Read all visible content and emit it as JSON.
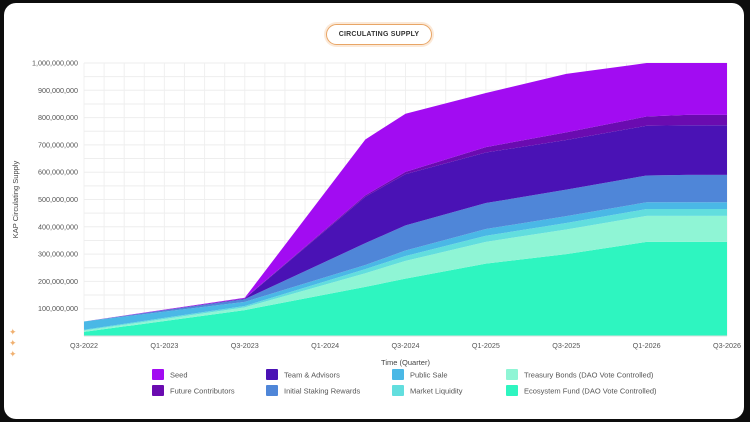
{
  "chart_data": {
    "type": "area",
    "stacked": true,
    "title": "CIRCULATING SUPPLY",
    "xlabel": "Time (Quarter)",
    "ylabel": "KAP Circulating Supply",
    "ylim": [
      0,
      1000000000
    ],
    "yticks": [
      "100,000,000",
      "200,000,000",
      "300,000,000",
      "400,000,000",
      "500,000,000",
      "600,000,000",
      "700,000,000",
      "800,000,000",
      "900,000,000",
      "1,000,000,000"
    ],
    "xticks": [
      "Q3-2022",
      "Q1-2023",
      "Q3-2023",
      "Q1-2024",
      "Q3-2024",
      "Q1-2025",
      "Q3-2025",
      "Q1-2026",
      "Q3-2026"
    ],
    "grid": true,
    "x": [
      "Q3-2022",
      "Q3-2023",
      "Q2-2024",
      "Q3-2024",
      "Q1-2025",
      "Q3-2025",
      "Q1-2026",
      "Q2-2026",
      "Q3-2026"
    ],
    "series": [
      {
        "name": "Ecosystem Fund (DAO Vote Controlled)",
        "color": "#2ef5c0",
        "values": [
          15000000,
          95000000,
          180000000,
          210000000,
          265000000,
          300000000,
          345000000,
          345000000,
          345000000
        ]
      },
      {
        "name": "Treasury Bonds (DAO Vote Controlled)",
        "color": "#8ff5d5",
        "values": [
          5000000,
          10000000,
          50000000,
          65000000,
          80000000,
          90000000,
          95000000,
          95000000,
          95000000
        ]
      },
      {
        "name": "Market Liquidity",
        "color": "#62dede",
        "values": [
          3000000,
          5000000,
          15000000,
          18000000,
          22000000,
          24000000,
          25000000,
          25000000,
          25000000
        ]
      },
      {
        "name": "Public Sale",
        "color": "#4ab8e6",
        "values": [
          30000000,
          15000000,
          15000000,
          20000000,
          25000000,
          25000000,
          25000000,
          25000000,
          25000000
        ]
      },
      {
        "name": "Initial Staking Rewards",
        "color": "#4f86d8",
        "values": [
          0,
          10000000,
          80000000,
          92000000,
          95000000,
          97000000,
          98000000,
          100000000,
          100000000
        ]
      },
      {
        "name": "Team & Advisors",
        "color": "#4a12b5",
        "values": [
          0,
          2000000,
          170000000,
          188000000,
          185000000,
          182000000,
          182000000,
          182000000,
          182000000
        ]
      },
      {
        "name": "Future Contributors",
        "color": "#6a0bb0",
        "values": [
          0,
          1000000,
          5000000,
          8000000,
          20000000,
          28000000,
          34000000,
          38000000,
          38000000
        ]
      },
      {
        "name": "Seed",
        "color": "#a20cf2",
        "values": [
          0,
          2000000,
          205000000,
          213000000,
          198000000,
          214000000,
          196000000,
          190000000,
          190000000
        ]
      }
    ],
    "legend": {
      "placement": "bottom",
      "rows": [
        [
          "Seed",
          "Team & Advisors",
          "Public Sale",
          "Treasury Bonds (DAO Vote Controlled)"
        ],
        [
          "Future Contributors",
          "Initial Staking Rewards",
          "Market Liquidity",
          "Ecosystem Fund (DAO Vote Controlled)"
        ]
      ]
    }
  },
  "decor": {
    "sparkle_icon": "✦"
  }
}
